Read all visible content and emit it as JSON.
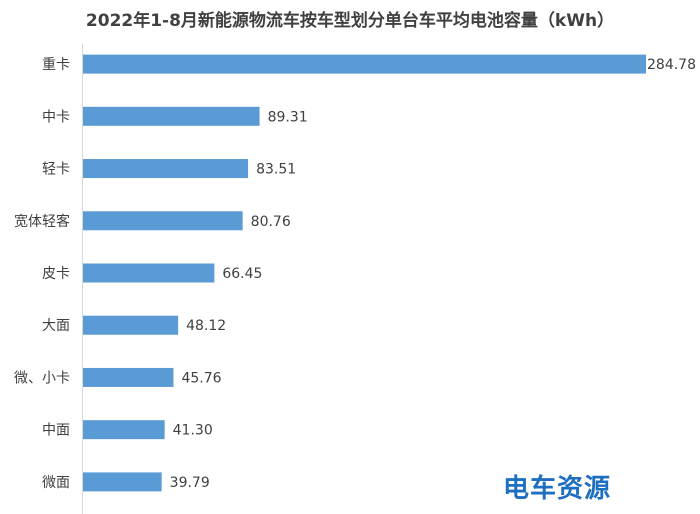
{
  "chart_data": {
    "type": "bar",
    "orientation": "horizontal",
    "title": "2022年1-8月新能源物流车按车型划分单台车平均电池容量（kWh）",
    "categories": [
      "重卡",
      "中卡",
      "轻卡",
      "宽体轻客",
      "皮卡",
      "大面",
      "微、小卡",
      "中面",
      "微面"
    ],
    "values": [
      284.78,
      89.31,
      83.51,
      80.76,
      66.45,
      48.12,
      45.76,
      41.3,
      39.79
    ],
    "value_labels": [
      "284.78",
      "89.31",
      "83.51",
      "80.76",
      "66.45",
      "48.12",
      "45.76",
      "41.30",
      "39.79"
    ],
    "xlim": [
      0,
      284.78
    ],
    "grid": false,
    "legend": "none",
    "bar_color": "#5B9BD5"
  },
  "watermark": {
    "text": "电车资源",
    "color": "#1f6fc0"
  }
}
